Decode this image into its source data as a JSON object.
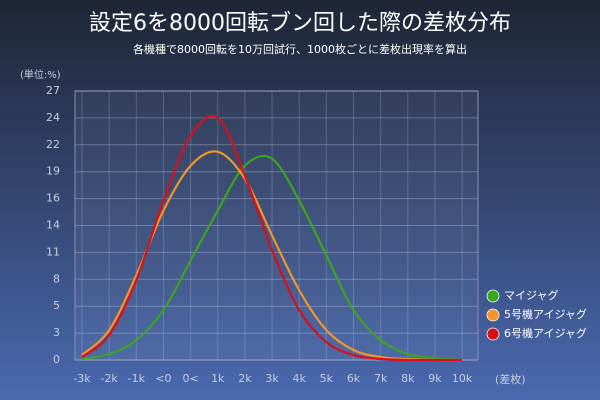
{
  "chart_data": {
    "type": "line",
    "title": "設定6を8000回転ブン回した際の差枚分布",
    "subtitle": "各機種で8000回転を10万回試行、1000枚ごとに差枚出現率を算出",
    "y_label": "(単位:%)",
    "x_label": "(差枚)",
    "categories": [
      "-3k",
      "-2k",
      "-1k",
      "<0",
      "0<",
      "1k",
      "2k",
      "3k",
      "4k",
      "5k",
      "6k",
      "7k",
      "8k",
      "9k",
      "10k"
    ],
    "series": [
      {
        "name": "マイジャグ",
        "color": "#3aa51e",
        "values": [
          0.1,
          0.6,
          2,
          5,
          10,
          15,
          19.5,
          20.2,
          16,
          10.5,
          5,
          2,
          0.6,
          0.2,
          0
        ]
      },
      {
        "name": "5号機アイジャグ",
        "color": "#f0962a",
        "values": [
          0.5,
          3,
          8.5,
          15,
          19.5,
          20.9,
          18.2,
          12.5,
          7,
          3,
          1,
          0.3,
          0.1,
          0,
          0
        ]
      },
      {
        "name": "6号機アイジャグ",
        "color": "#d8101c",
        "values": [
          0.3,
          2.5,
          8,
          16,
          22.5,
          24.3,
          18.5,
          11,
          5,
          1.8,
          0.5,
          0.1,
          0,
          0,
          0
        ]
      }
    ],
    "ylim": [
      0,
      27
    ],
    "yticks": [
      0,
      {
        "value": 2.7,
        "label": "3"
      },
      {
        "value": 5.4,
        "label": "5"
      },
      {
        "value": 8.1,
        "label": "8"
      },
      {
        "value": 10.8,
        "label": "11"
      },
      {
        "value": 13.5,
        "label": "14"
      },
      {
        "value": 16.2,
        "label": "16"
      },
      {
        "value": 18.9,
        "label": "19"
      },
      {
        "value": 21.6,
        "label": "22"
      },
      {
        "value": 24.3,
        "label": "24"
      },
      27
    ],
    "grid": true,
    "legend": "bottom-right"
  }
}
